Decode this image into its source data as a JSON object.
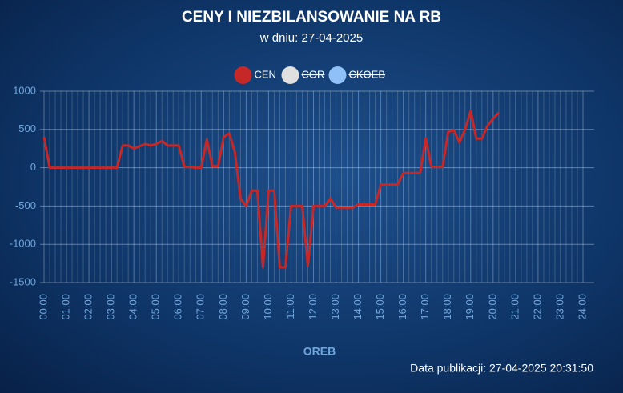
{
  "chart_data": {
    "type": "line",
    "title": "CENY I NIEZBILANSOWANIE NA RB",
    "subtitle": "w dniu: 27-04-2025",
    "x_label": "OREB",
    "footer": "Data publikacji: 27-04-2025 20:31:50",
    "x": [
      0,
      0.25,
      0.5,
      0.75,
      1,
      1.25,
      1.5,
      1.75,
      2,
      2.25,
      2.5,
      2.75,
      3,
      3.25,
      3.5,
      3.75,
      4,
      4.25,
      4.5,
      4.75,
      5,
      5.25,
      5.5,
      5.75,
      6,
      6.25,
      6.5,
      6.75,
      7,
      7.25,
      7.5,
      7.75,
      8,
      8.25,
      8.5,
      8.75,
      9,
      9.25,
      9.5,
      9.75,
      10,
      10.25,
      10.5,
      10.75,
      11,
      11.25,
      11.5,
      11.75,
      12,
      12.25,
      12.5,
      12.75,
      13,
      13.25,
      13.5,
      13.75,
      14,
      14.25,
      14.5,
      14.75,
      15,
      15.25,
      15.5,
      15.75,
      16,
      16.25,
      16.5,
      16.75,
      17,
      17.25,
      17.5,
      17.75,
      18,
      18.25,
      18.5,
      18.75,
      19,
      19.25,
      19.5,
      19.75,
      20,
      20.25
    ],
    "series": [
      {
        "name": "CEN",
        "color": "#c62828",
        "visible": true,
        "values": [
          400,
          0,
          0,
          0,
          0,
          0,
          0,
          0,
          0,
          0,
          0,
          0,
          0,
          0,
          290,
          290,
          250,
          280,
          310,
          290,
          310,
          350,
          290,
          290,
          290,
          10,
          10,
          0,
          0,
          370,
          20,
          20,
          400,
          450,
          200,
          -400,
          -500,
          -300,
          -300,
          -1300,
          -300,
          -300,
          -1300,
          -1300,
          -500,
          -500,
          -500,
          -1280,
          -500,
          -500,
          -500,
          -400,
          -520,
          -520,
          -520,
          -520,
          -480,
          -480,
          -480,
          -480,
          -220,
          -220,
          -220,
          -220,
          -70,
          -70,
          -70,
          -70,
          380,
          10,
          10,
          10,
          470,
          490,
          330,
          500,
          740,
          380,
          380,
          550,
          640,
          720
        ]
      },
      {
        "name": "COR",
        "color": "#e0e0e0",
        "visible": false
      },
      {
        "name": "CKOEB",
        "color": "#90c0f8",
        "visible": false
      }
    ],
    "ylim": [
      -1500,
      1000
    ],
    "yticks": [
      -1500,
      -1000,
      -500,
      0,
      500,
      1000
    ],
    "xlim": [
      0,
      24
    ],
    "xticks": [
      {
        "value": 0,
        "label": "00:00"
      },
      {
        "value": 1,
        "label": "01:00"
      },
      {
        "value": 2,
        "label": "02:00"
      },
      {
        "value": 3,
        "label": "03:00"
      },
      {
        "value": 4,
        "label": "04:00"
      },
      {
        "value": 5,
        "label": "05:00"
      },
      {
        "value": 6,
        "label": "06:00"
      },
      {
        "value": 7,
        "label": "07:00"
      },
      {
        "value": 8,
        "label": "08:00"
      },
      {
        "value": 9,
        "label": "09:00"
      },
      {
        "value": 10,
        "label": "10:00"
      },
      {
        "value": 11,
        "label": "11:00"
      },
      {
        "value": 12,
        "label": "12:00"
      },
      {
        "value": 13,
        "label": "13:00"
      },
      {
        "value": 14,
        "label": "14:00"
      },
      {
        "value": 15,
        "label": "15:00"
      },
      {
        "value": 16,
        "label": "16:00"
      },
      {
        "value": 17,
        "label": "17:00"
      },
      {
        "value": 18,
        "label": "18:00"
      },
      {
        "value": 19,
        "label": "19:00"
      },
      {
        "value": 20,
        "label": "20:00"
      },
      {
        "value": 21,
        "label": "21:00"
      },
      {
        "value": 22,
        "label": "22:00"
      },
      {
        "value": 23,
        "label": "23:00"
      },
      {
        "value": 24,
        "label": "24:00"
      }
    ],
    "x_minor_divisions": 4,
    "grid": true
  }
}
